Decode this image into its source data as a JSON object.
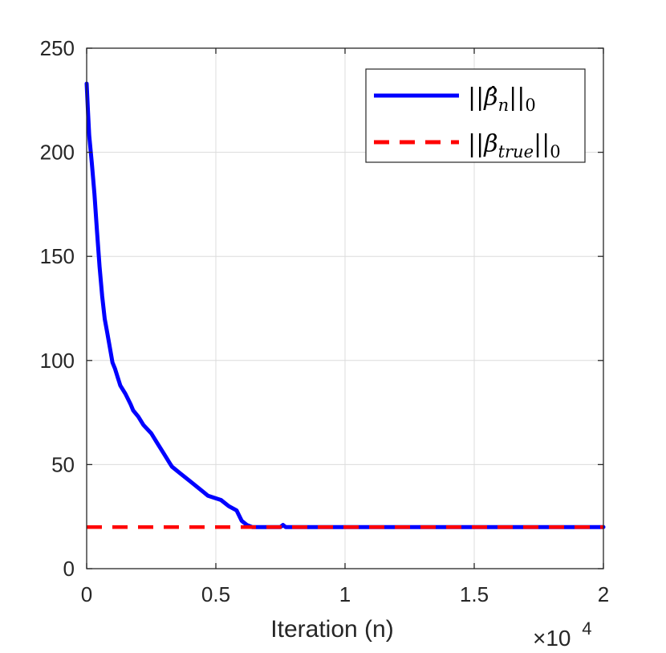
{
  "chart_data": {
    "type": "line",
    "title": "",
    "xlabel": "Iteration (n)",
    "ylabel": "",
    "x_multiplier": {
      "base": "×10",
      "exponent": "4"
    },
    "xlim": [
      0,
      2
    ],
    "ylim": [
      0,
      250
    ],
    "xticks": [
      0,
      0.5,
      1,
      1.5,
      2
    ],
    "xtick_labels": [
      "0",
      "0.5",
      "1",
      "1.5",
      "2"
    ],
    "yticks": [
      0,
      50,
      100,
      150,
      200,
      250
    ],
    "ytick_labels": [
      "0",
      "50",
      "100",
      "150",
      "200",
      "250"
    ],
    "grid": true,
    "legend": {
      "placement": "top-right",
      "entries": [
        {
          "label": "||β̂n||0",
          "display": {
            "pre": "||",
            "sym": "β̂",
            "sub": "n",
            "post": "||",
            "post_sub": "0"
          }
        },
        {
          "label": "||βtrue||0",
          "display": {
            "pre": "||",
            "sym": "β",
            "sub": "true",
            "post": "||",
            "post_sub": "0"
          }
        }
      ]
    },
    "series": [
      {
        "name": "||β̂n||0",
        "color": "#0000ff",
        "style": "solid",
        "x": [
          0,
          0.005,
          0.01,
          0.02,
          0.03,
          0.04,
          0.05,
          0.06,
          0.07,
          0.08,
          0.09,
          0.1,
          0.11,
          0.12,
          0.13,
          0.15,
          0.17,
          0.18,
          0.2,
          0.22,
          0.25,
          0.27,
          0.3,
          0.32,
          0.33,
          0.36,
          0.4,
          0.45,
          0.47,
          0.52,
          0.55,
          0.58,
          0.6,
          0.62,
          0.64,
          0.7,
          0.75,
          0.76,
          0.77,
          1.0,
          1.5,
          2.0
        ],
        "y": [
          233,
          220,
          208,
          195,
          180,
          162,
          145,
          131,
          120,
          113,
          106,
          99,
          96,
          92,
          88,
          84,
          79,
          76,
          73,
          69,
          65,
          61,
          55,
          51,
          49,
          46,
          42,
          37,
          35,
          33,
          30,
          28,
          23,
          21,
          20,
          20,
          20,
          21,
          20,
          20,
          20,
          20
        ]
      },
      {
        "name": "||βtrue||0",
        "color": "#ff0000",
        "style": "dashed",
        "x": [
          0,
          2
        ],
        "y": [
          20,
          20
        ]
      }
    ]
  }
}
